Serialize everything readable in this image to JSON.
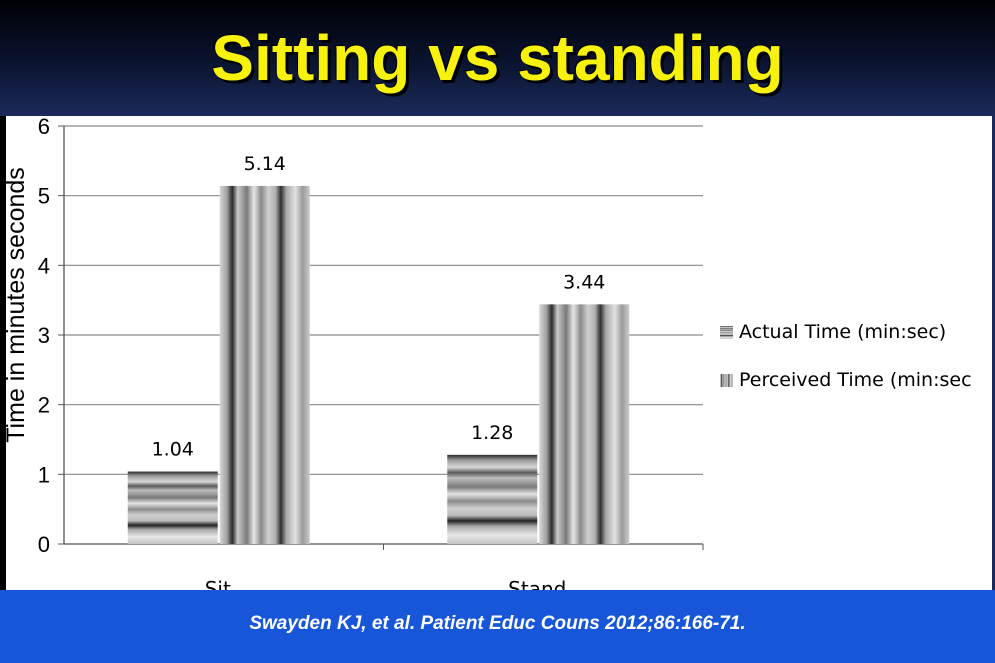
{
  "slide": {
    "title": "Sitting vs standing",
    "citation": "Swayden KJ, et al. Patient Educ Couns 2012;86:166-71."
  },
  "chart_data": {
    "type": "bar",
    "categories": [
      "Sit",
      "Stand"
    ],
    "series": [
      {
        "name": "Actual Time (min:sec)",
        "values": [
          1.04,
          1.28
        ],
        "labels": [
          "1.04",
          "1.28"
        ],
        "pattern": "horizontal-stripes"
      },
      {
        "name": "Perceived Time (min:sec",
        "values": [
          5.14,
          3.44
        ],
        "labels": [
          "5.14",
          "3.44"
        ],
        "pattern": "vertical-stripes"
      }
    ],
    "title": "",
    "xlabel": "",
    "ylabel": "Time in minutes seconds",
    "ylim": [
      0,
      6
    ],
    "yticks": [
      0,
      1,
      2,
      3,
      4,
      5,
      6
    ],
    "grid": true,
    "legend": "right"
  }
}
